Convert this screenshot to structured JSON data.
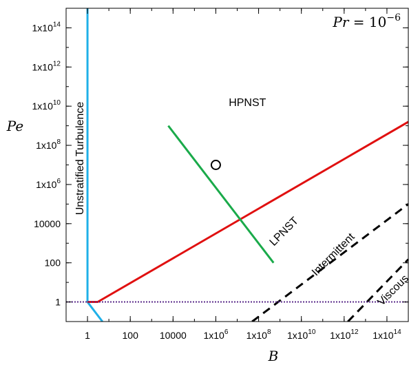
{
  "chart_data": {
    "type": "line",
    "title": "",
    "xlabel": "B",
    "ylabel": "Pe",
    "x_scale": "log",
    "y_scale": "log",
    "xlim": [
      0.1,
      1000000000000000.0
    ],
    "ylim": [
      0.1,
      1000000000000000.0
    ],
    "grid": false,
    "legend": "none",
    "xticks": [
      {
        "value": 1,
        "label": "1"
      },
      {
        "value": 100,
        "label": "100"
      },
      {
        "value": 10000,
        "label": "10000"
      },
      {
        "value": 1000000.0,
        "label": "1x10",
        "sup": "6"
      },
      {
        "value": 100000000.0,
        "label": "1x10",
        "sup": "8"
      },
      {
        "value": 10000000000.0,
        "label": "1x10",
        "sup": "10"
      },
      {
        "value": 1000000000000.0,
        "label": "1x10",
        "sup": "12"
      },
      {
        "value": 100000000000000.0,
        "label": "1x10",
        "sup": "14"
      }
    ],
    "yticks": [
      {
        "value": 1,
        "label": "1"
      },
      {
        "value": 100,
        "label": "100"
      },
      {
        "value": 10000,
        "label": "10000"
      },
      {
        "value": 1000000.0,
        "label": "1x10",
        "sup": "6"
      },
      {
        "value": 100000000.0,
        "label": "1x10",
        "sup": "8"
      },
      {
        "value": 10000000000.0,
        "label": "1x10",
        "sup": "10"
      },
      {
        "value": 1000000000000.0,
        "label": "1x10",
        "sup": "12"
      },
      {
        "value": 100000000000000.0,
        "label": "1x10",
        "sup": "14"
      }
    ],
    "parameter_label": {
      "lhs": "Pr",
      "base": "10",
      "exp": "−6"
    },
    "series": [
      {
        "key": "unstratified-boundary",
        "color": "#1fb0e8",
        "style": "solid",
        "points": [
          [
            1,
            1000000000000000.0
          ],
          [
            1,
            1
          ],
          [
            5,
            0.1
          ]
        ]
      },
      {
        "key": "lpnst-boundary",
        "color": "#e01010",
        "style": "solid",
        "points": [
          [
            1,
            1
          ],
          [
            3,
            1
          ],
          [
            1000000000000000.0,
            1580000000.0
          ]
        ]
      },
      {
        "key": "hpnst-line",
        "color": "#1aaa4a",
        "style": "solid",
        "points": [
          [
            6000.0,
            1000000000.0
          ],
          [
            500000000.0,
            100
          ]
        ]
      },
      {
        "key": "intermittent-boundary",
        "color": "#000000",
        "style": "dashed",
        "points": [
          [
            50000000.0,
            0.1
          ],
          [
            1000000000000000.0,
            100000.0
          ]
        ]
      },
      {
        "key": "viscous-boundary",
        "color": "#000000",
        "style": "dashed",
        "points": [
          [
            1500000000000.0,
            0.1
          ],
          [
            1000000000000000.0,
            150
          ]
        ]
      },
      {
        "key": "pe-one-line",
        "color": "#5a2a8a",
        "style": "dotted",
        "points": [
          [
            0.1,
            1
          ],
          [
            1000000000000000.0,
            1
          ]
        ]
      }
    ],
    "markers": [
      {
        "key": "circle-marker",
        "shape": "open-circle",
        "x": 1000000.0,
        "y": 10000000.0
      }
    ],
    "annotations": [
      {
        "key": "region-unstratified",
        "text": "Unstratified Turbulence",
        "x": 0.03,
        "y": 100000000.0,
        "rotate": -90
      },
      {
        "key": "region-hpnst",
        "text": "HPNST",
        "x": 30000000.0,
        "y": 10000000000.0,
        "rotate": 0
      },
      {
        "key": "region-lpnst",
        "text": "LPNST",
        "x": 2000000000.0,
        "y": 3000,
        "rotate": -45
      },
      {
        "key": "region-intermittent",
        "text": "Intermittent",
        "x": 400000000000.0,
        "y": 200,
        "rotate": -45
      },
      {
        "key": "region-viscous",
        "text": "Viscous",
        "x": 250000000000000.0,
        "y": 3,
        "rotate": -45
      }
    ]
  }
}
